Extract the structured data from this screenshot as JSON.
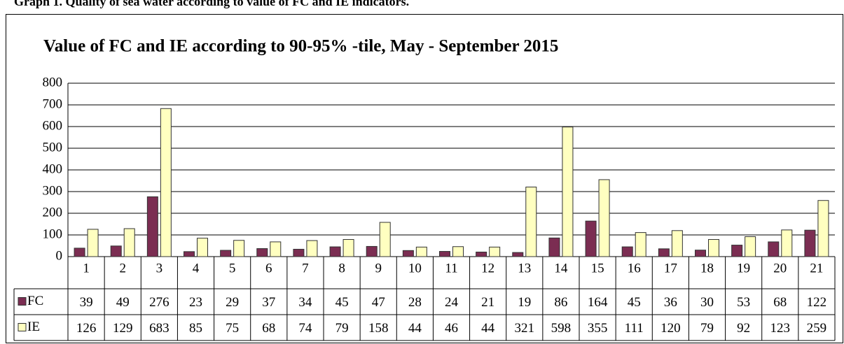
{
  "caption": "Graph 1. Quality of sea water according to value of FC and IE indicators.",
  "chart_data": {
    "type": "bar",
    "title": "Value of FC and IE according to 90-95% -tile, May - September 2015",
    "categories": [
      "1",
      "2",
      "3",
      "4",
      "5",
      "6",
      "7",
      "8",
      "9",
      "10",
      "11",
      "12",
      "13",
      "14",
      "15",
      "16",
      "17",
      "18",
      "19",
      "20",
      "21"
    ],
    "series": [
      {
        "name": "FC",
        "color": "#7b2d52",
        "values": [
          39,
          49,
          276,
          23,
          29,
          37,
          34,
          45,
          47,
          28,
          24,
          21,
          19,
          86,
          164,
          45,
          36,
          30,
          53,
          68,
          122
        ]
      },
      {
        "name": "IE",
        "color": "#ffffc0",
        "values": [
          126,
          129,
          683,
          85,
          75,
          68,
          74,
          79,
          158,
          44,
          46,
          44,
          321,
          598,
          355,
          111,
          120,
          79,
          92,
          123,
          259
        ]
      }
    ],
    "ylim": [
      0,
      800
    ],
    "yticks": [
      0,
      100,
      200,
      300,
      400,
      500,
      600,
      700,
      800
    ],
    "grid": true
  }
}
